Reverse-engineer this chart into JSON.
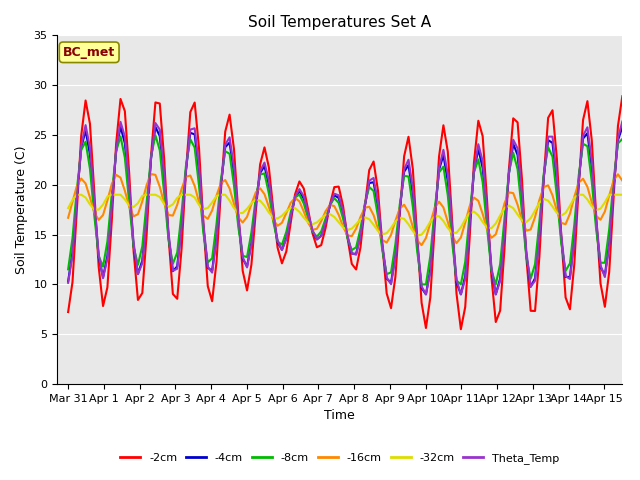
{
  "title": "Soil Temperatures Set A",
  "xlabel": "Time",
  "ylabel": "Soil Temperature (C)",
  "annotation": "BC_met",
  "ylim": [
    0,
    35
  ],
  "tick_labels": [
    "Mar 31",
    "Apr 1",
    "Apr 2",
    "Apr 3",
    "Apr 4",
    "Apr 5",
    "Apr 6",
    "Apr 7",
    "Apr 8",
    "Apr 9",
    "Apr 10",
    "Apr 11",
    "Apr 12",
    "Apr 13",
    "Apr 14",
    "Apr 15"
  ],
  "series_colors": {
    "-2cm": "#ff0000",
    "-4cm": "#0000cc",
    "-8cm": "#00bb00",
    "-16cm": "#ff8800",
    "-32cm": "#dddd00",
    "Theta_Temp": "#9933cc"
  },
  "bg_color": "#e8e8e8",
  "annotation_bg": "#ffff99",
  "annotation_border": "#888800",
  "annotation_text_color": "#880000",
  "grid_color": "#ffffff",
  "yticks": [
    0,
    5,
    10,
    15,
    20,
    25,
    30,
    35
  ]
}
